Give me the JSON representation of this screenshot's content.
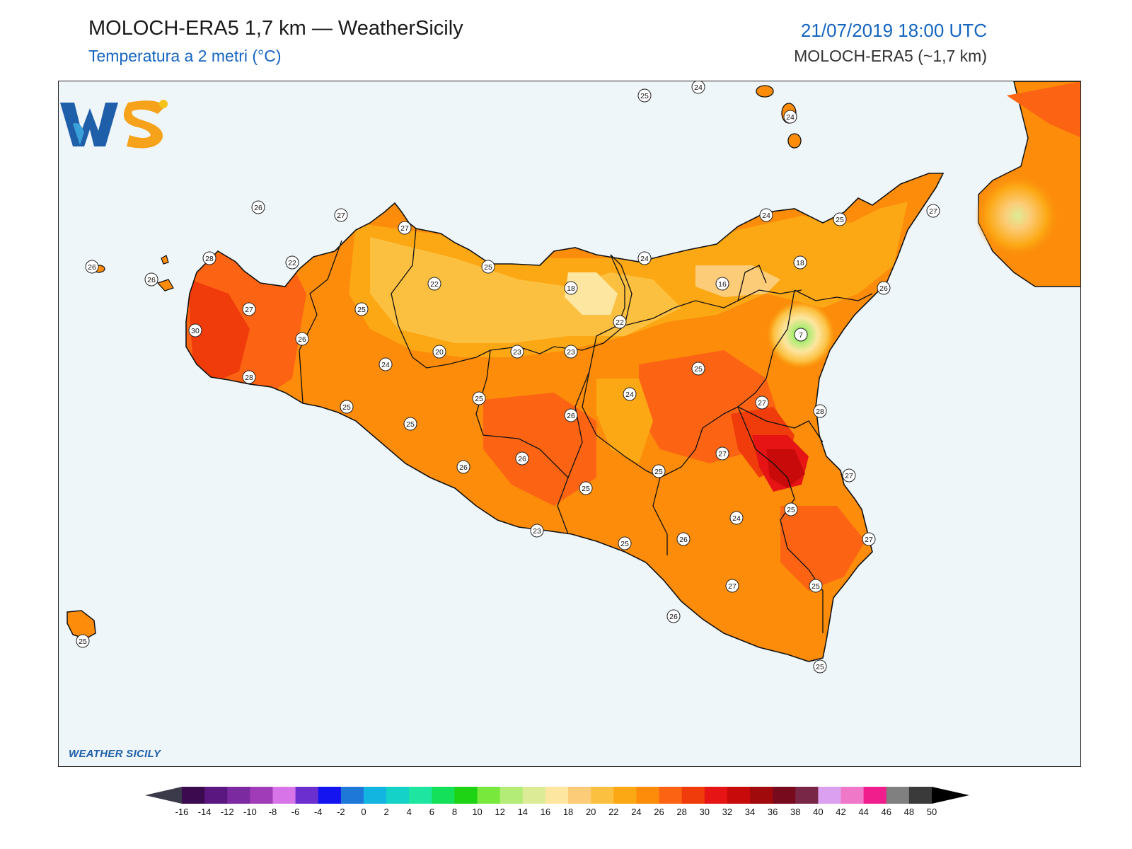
{
  "header": {
    "title": "MOLOCH-ERA5 1,7 km — WeatherSicily",
    "subtitle": "Temperatura a 2 metri (°C)",
    "datetime": "21/07/2019 18:00 UTC",
    "model": "MOLOCH-ERA5 (~1,7 km)"
  },
  "logo": {
    "text": "WEATHER SICILY",
    "letters": "WS"
  },
  "colors": {
    "sea": "#eef6fa",
    "accent_blue": "#1565c0"
  },
  "station_values": [
    {
      "id": "s1",
      "value": "25"
    },
    {
      "id": "s2",
      "value": "24"
    },
    {
      "id": "s3",
      "value": "24"
    },
    {
      "id": "s4",
      "value": "26"
    },
    {
      "id": "s5",
      "value": "27"
    },
    {
      "id": "s6",
      "value": "27"
    },
    {
      "id": "s7",
      "value": "24"
    },
    {
      "id": "s8",
      "value": "25"
    },
    {
      "id": "s9",
      "value": "27"
    },
    {
      "id": "s10",
      "value": "26"
    },
    {
      "id": "s11",
      "value": "28"
    },
    {
      "id": "s12",
      "value": "22"
    },
    {
      "id": "s13",
      "value": "26"
    },
    {
      "id": "s14",
      "value": "22"
    },
    {
      "id": "s15",
      "value": "25"
    },
    {
      "id": "s16",
      "value": "24"
    },
    {
      "id": "s17",
      "value": "18"
    },
    {
      "id": "s18",
      "value": "18"
    },
    {
      "id": "s19",
      "value": "16"
    },
    {
      "id": "s20",
      "value": "26"
    },
    {
      "id": "s21",
      "value": "27"
    },
    {
      "id": "s22",
      "value": "25"
    },
    {
      "id": "s23",
      "value": "22"
    },
    {
      "id": "s24",
      "value": "30"
    },
    {
      "id": "s25",
      "value": "26"
    },
    {
      "id": "s26",
      "value": "7"
    },
    {
      "id": "s27",
      "value": "20"
    },
    {
      "id": "s28",
      "value": "23"
    },
    {
      "id": "s29",
      "value": "23"
    },
    {
      "id": "s30",
      "value": "24"
    },
    {
      "id": "s31",
      "value": "28"
    },
    {
      "id": "s32",
      "value": "25"
    },
    {
      "id": "s33",
      "value": "25"
    },
    {
      "id": "s34",
      "value": "24"
    },
    {
      "id": "s35",
      "value": "25"
    },
    {
      "id": "s36",
      "value": "27"
    },
    {
      "id": "s37",
      "value": "28"
    },
    {
      "id": "s38",
      "value": "26"
    },
    {
      "id": "s39",
      "value": "25"
    },
    {
      "id": "s40",
      "value": "27"
    },
    {
      "id": "s41",
      "value": "26"
    },
    {
      "id": "s42",
      "value": "26"
    },
    {
      "id": "s43",
      "value": "25"
    },
    {
      "id": "s44",
      "value": "27"
    },
    {
      "id": "s45",
      "value": "25"
    },
    {
      "id": "s46",
      "value": "24"
    },
    {
      "id": "s47",
      "value": "25"
    },
    {
      "id": "s48",
      "value": "26"
    },
    {
      "id": "s49",
      "value": "27"
    },
    {
      "id": "s50",
      "value": "23"
    },
    {
      "id": "s51",
      "value": "25"
    },
    {
      "id": "s52",
      "value": "26"
    },
    {
      "id": "s53",
      "value": "27"
    },
    {
      "id": "s54",
      "value": "25"
    },
    {
      "id": "s55",
      "value": "25"
    },
    {
      "id": "s56",
      "value": "25"
    }
  ],
  "colorbar": {
    "ticks": [
      "-16",
      "-14",
      "-12",
      "-10",
      "-8",
      "-6",
      "-4",
      "-2",
      "0",
      "2",
      "4",
      "6",
      "8",
      "10",
      "12",
      "14",
      "16",
      "18",
      "20",
      "22",
      "24",
      "26",
      "28",
      "30",
      "32",
      "34",
      "36",
      "38",
      "40",
      "42",
      "44",
      "46",
      "48",
      "50"
    ],
    "colors": [
      "#3b0a4f",
      "#5a1780",
      "#7b2aa0",
      "#a03cb8",
      "#d774e8",
      "#6b2fd0",
      "#1414f0",
      "#1e78d8",
      "#12b4e0",
      "#14d2c8",
      "#1ee6a0",
      "#14e05a",
      "#1ed214",
      "#78e83c",
      "#b4ec78",
      "#dcec96",
      "#fde6a0",
      "#fccc78",
      "#fcc040",
      "#fca814",
      "#fc8c0a",
      "#fc6414",
      "#f03c0a",
      "#e61414",
      "#c80a0a",
      "#a00a0a",
      "#780a1e",
      "#782846",
      "#dca0f0",
      "#f078c8",
      "#f01e8c",
      "#808080",
      "#3a3a3a"
    ]
  }
}
